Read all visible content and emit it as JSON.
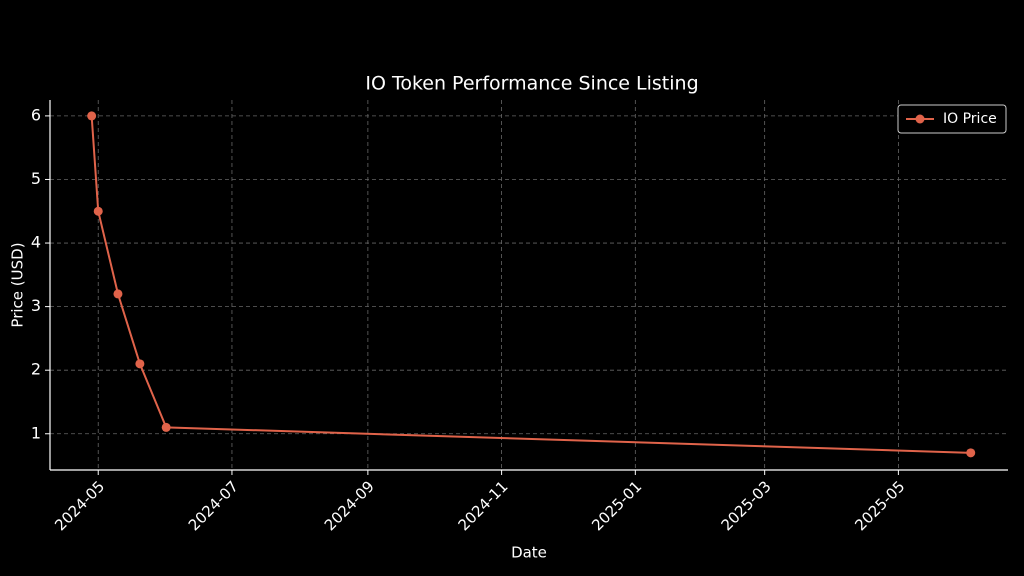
{
  "chart_data": {
    "type": "line",
    "title": "IO Token Performance Since Listing",
    "x_label": "Date",
    "y_label": "Price (USD)",
    "x": [
      "2024-04-28",
      "2024-05-01",
      "2024-05-10",
      "2024-05-20",
      "2024-06-01",
      "2025-06-03"
    ],
    "series": [
      {
        "name": "IO Price",
        "color": "#e0634a",
        "values": [
          6,
          4.5,
          3.2,
          2.1,
          1.1,
          0.7
        ]
      }
    ],
    "xlim": [
      "2024-04-09",
      "2025-06-20"
    ],
    "xticks": [
      {
        "value": "2024-05-01",
        "label": "2024-05"
      },
      {
        "value": "2024-07-01",
        "label": "2024-07"
      },
      {
        "value": "2024-09-01",
        "label": "2024-09"
      },
      {
        "value": "2024-11-01",
        "label": "2024-11"
      },
      {
        "value": "2025-01-01",
        "label": "2025-01"
      },
      {
        "value": "2025-03-01",
        "label": "2025-03"
      },
      {
        "value": "2025-05-01",
        "label": "2025-05"
      }
    ],
    "ylim": [
      0.43,
      6.25
    ],
    "yticks": [
      1,
      2,
      3,
      4,
      5,
      6
    ],
    "grid": true,
    "legend": "upper-right"
  }
}
